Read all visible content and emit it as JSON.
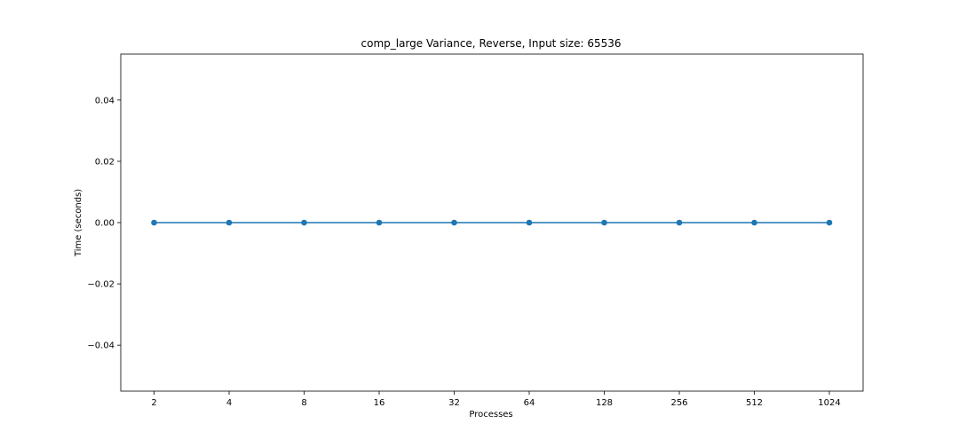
{
  "chart_data": {
    "type": "line",
    "title": "comp_large Variance, Reverse, Input size: 65536",
    "xlabel": "Processes",
    "ylabel": "Time (seconds)",
    "categories": [
      "2",
      "4",
      "8",
      "16",
      "32",
      "64",
      "128",
      "256",
      "512",
      "1024"
    ],
    "series": [
      {
        "values": [
          0,
          0,
          0,
          0,
          0,
          0,
          0,
          0,
          0,
          0
        ],
        "color": "#1f77b4",
        "marker": "circle"
      }
    ],
    "ylim": [
      -0.055,
      0.055
    ],
    "yticks": [
      -0.04,
      -0.02,
      0.0,
      0.02,
      0.04
    ],
    "ytick_labels": [
      "−0.04",
      "−0.02",
      "0.00",
      "0.02",
      "0.04"
    ],
    "grid": false,
    "legend": false
  }
}
